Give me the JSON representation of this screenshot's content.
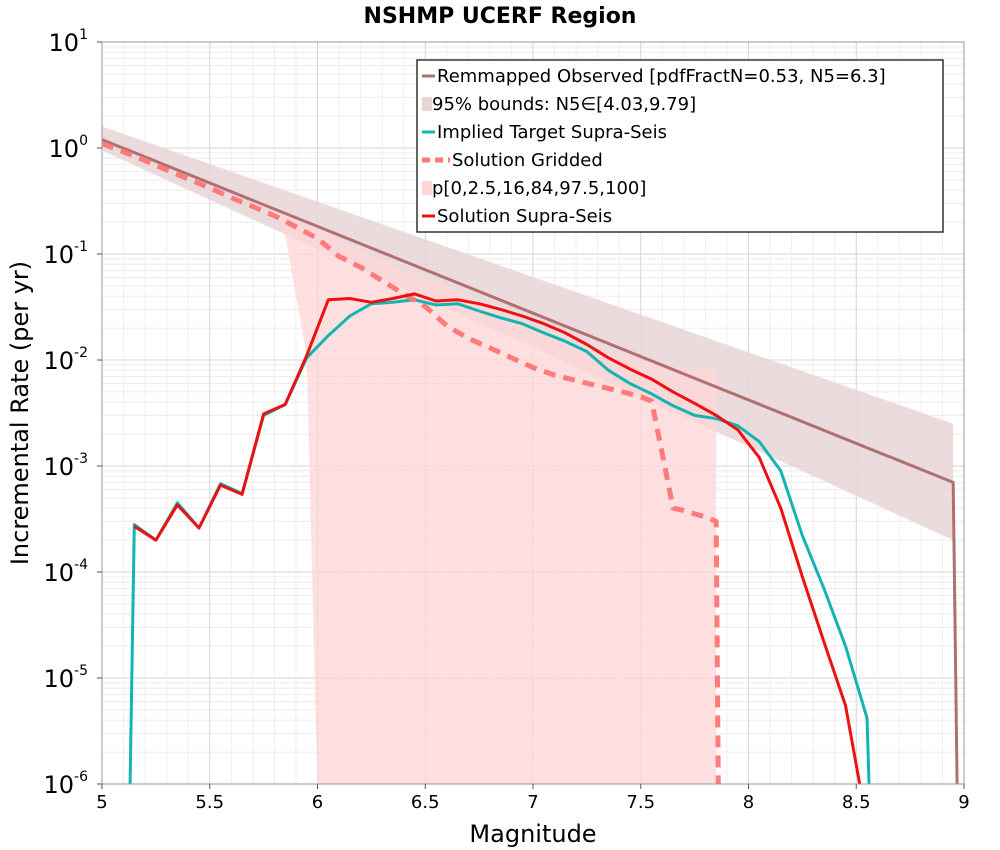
{
  "chart_data": {
    "type": "line",
    "title": "NSHMP UCERF Region",
    "xlabel": "Magnitude",
    "ylabel": "Incremental Rate (per yr)",
    "xlim": [
      5,
      9
    ],
    "ylim_log10": [
      -6,
      1
    ],
    "grid": true,
    "x_ticks": [
      5,
      5.5,
      6,
      6.5,
      7,
      7.5,
      8,
      8.5,
      9
    ],
    "x_tick_labels": [
      "5",
      "5.5",
      "6",
      "6.5",
      "7",
      "7.5",
      "8",
      "8.5",
      "9"
    ],
    "y_tick_exponents": [
      1,
      0,
      -1,
      -2,
      -3,
      -4,
      -5,
      -6
    ],
    "y_tick_base": "10",
    "legend_position": "top-right",
    "colors": {
      "observed": "#b07070",
      "bounds": "#e8d5d7",
      "target": "#14b4b0",
      "gridded": "#ff7a7a",
      "percentile": "#ffd6d6",
      "solution": "#ee1111"
    },
    "series": [
      {
        "name": "Remmapped Observed [pdfFractN=0.53, N5=6.3]",
        "key": "observed",
        "style": "line",
        "x": [
          5.0,
          8.95,
          8.97
        ],
        "y": [
          1.2,
          0.0007,
          5e-07
        ]
      },
      {
        "name": "95% bounds: N5∈[4.03,9.79]",
        "key": "bounds",
        "style": "band",
        "x": [
          5.0,
          8.95
        ],
        "lower": [
          0.95,
          0.0002
        ],
        "upper": [
          1.6,
          0.0025
        ]
      },
      {
        "name": "Implied Target Supra-Seis",
        "key": "target",
        "style": "line",
        "x": [
          5.13,
          5.15,
          5.25,
          5.35,
          5.45,
          5.55,
          5.65,
          5.75,
          5.85,
          5.95,
          6.05,
          6.15,
          6.25,
          6.35,
          6.45,
          6.55,
          6.65,
          6.75,
          6.85,
          6.95,
          7.05,
          7.15,
          7.25,
          7.35,
          7.45,
          7.55,
          7.65,
          7.75,
          7.85,
          7.95,
          8.05,
          8.15,
          8.25,
          8.35,
          8.45,
          8.55,
          8.56
        ],
        "y": [
          9e-07,
          0.00028,
          0.0002,
          0.00045,
          0.00026,
          0.00068,
          0.00055,
          0.003,
          0.0038,
          0.0105,
          0.017,
          0.026,
          0.034,
          0.035,
          0.037,
          0.033,
          0.034,
          0.029,
          0.025,
          0.022,
          0.018,
          0.015,
          0.012,
          0.008,
          0.006,
          0.0048,
          0.0037,
          0.003,
          0.0028,
          0.0024,
          0.0017,
          0.0009,
          0.00022,
          7e-05,
          2e-05,
          4.2e-06,
          9e-07
        ]
      },
      {
        "name": "Solution Gridded",
        "key": "gridded",
        "style": "dashed",
        "x": [
          5.0,
          5.1,
          5.2,
          5.3,
          5.4,
          5.5,
          5.6,
          5.7,
          5.8,
          5.9,
          6.0,
          6.1,
          6.2,
          6.3,
          6.4,
          6.5,
          6.6,
          6.7,
          6.8,
          6.9,
          7.0,
          7.1,
          7.2,
          7.3,
          7.4,
          7.5,
          7.55,
          7.6,
          7.65,
          7.7,
          7.8,
          7.85,
          7.86
        ],
        "y": [
          1.1,
          0.92,
          0.76,
          0.62,
          0.51,
          0.42,
          0.34,
          0.28,
          0.23,
          0.18,
          0.14,
          0.095,
          0.075,
          0.056,
          0.042,
          0.032,
          0.021,
          0.016,
          0.013,
          0.0105,
          0.0085,
          0.0072,
          0.0064,
          0.0057,
          0.0051,
          0.0045,
          0.0041,
          0.0013,
          0.0004,
          0.00038,
          0.00033,
          0.0003,
          9e-07
        ]
      },
      {
        "name": "p[0,2.5,16,84,97.5,100]",
        "key": "percentile",
        "style": "band",
        "x": [
          5.0,
          5.8,
          5.85,
          5.95,
          6.0,
          6.05,
          6.2,
          6.35,
          6.38,
          6.6,
          6.7,
          6.8,
          7.0,
          7.1,
          7.2,
          7.3,
          7.45,
          7.5,
          7.58,
          7.6,
          7.7,
          7.8,
          7.85
        ],
        "lower": [
          1.2,
          0.25,
          0.15,
          0.011,
          9e-07,
          9e-07,
          9e-07,
          9e-07,
          9e-07,
          9e-07,
          9e-07,
          9e-07,
          9e-07,
          9e-07,
          9e-07,
          9e-07,
          9e-07,
          9e-07,
          9e-07,
          9e-07,
          9e-07,
          9e-07,
          9e-07
        ],
        "upper": [
          1.2,
          0.25,
          0.24,
          0.21,
          0.19,
          0.16,
          0.11,
          0.08,
          0.07,
          0.05,
          0.04,
          0.03,
          0.02,
          0.016,
          0.014,
          0.012,
          0.011,
          0.01,
          0.009,
          0.0085,
          0.0083,
          0.0082,
          0.0081
        ]
      },
      {
        "name": "Solution Supra-Seis",
        "key": "solution",
        "style": "line",
        "x": [
          5.15,
          5.25,
          5.35,
          5.45,
          5.55,
          5.65,
          5.75,
          5.85,
          5.95,
          6.05,
          6.15,
          6.25,
          6.35,
          6.45,
          6.55,
          6.65,
          6.75,
          6.85,
          6.95,
          7.05,
          7.15,
          7.25,
          7.35,
          7.45,
          7.55,
          7.65,
          7.75,
          7.85,
          7.95,
          8.05,
          8.15,
          8.25,
          8.35,
          8.45,
          8.52
        ],
        "y": [
          0.00027,
          0.0002,
          0.00043,
          0.00026,
          0.00066,
          0.00054,
          0.0031,
          0.0038,
          0.011,
          0.037,
          0.038,
          0.035,
          0.038,
          0.042,
          0.036,
          0.037,
          0.034,
          0.03,
          0.026,
          0.022,
          0.018,
          0.014,
          0.0105,
          0.0082,
          0.0066,
          0.005,
          0.0039,
          0.003,
          0.0022,
          0.0012,
          0.0004,
          9e-05,
          2.2e-05,
          5.5e-06,
          9e-07
        ]
      }
    ]
  }
}
